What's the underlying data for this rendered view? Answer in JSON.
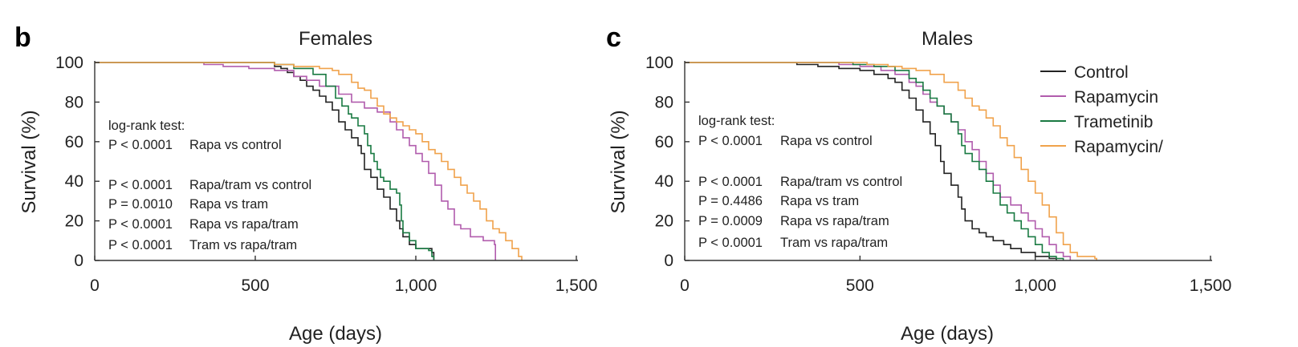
{
  "colors": {
    "control": "#222222",
    "rapamycin": "#b15cad",
    "trametinib": "#197a42",
    "combo": "#f0a24b"
  },
  "legend": {
    "placement": "top-right",
    "entries": [
      "Control",
      "Rapamycin",
      "Trametinib",
      "Rapamycin/"
    ]
  },
  "chart_data": [
    {
      "panel": "b",
      "type": "line",
      "title": "Females",
      "xlabel": "Age (days)",
      "ylabel": "Survival (%)",
      "xlim": [
        0,
        1500
      ],
      "ylim": [
        0,
        100
      ],
      "xticks": [
        "0",
        "500",
        "1,000",
        "1,500"
      ],
      "yticks": [
        "0",
        "20",
        "40",
        "60",
        "80",
        "100"
      ],
      "stats_header": "log-rank test:",
      "stats": [
        {
          "p": "P < 0.0001",
          "comparison": "Rapa vs control"
        },
        {
          "p": "P < 0.0001",
          "comparison": "Rapa/tram vs control"
        },
        {
          "p": "P = 0.0010",
          "comparison": "Rapa vs tram"
        },
        {
          "p": "P < 0.0001",
          "comparison": "Rapa vs rapa/tram"
        },
        {
          "p": "P < 0.0001",
          "comparison": "Tram vs rapa/tram"
        }
      ],
      "series": [
        {
          "name": "Control",
          "color_key": "control",
          "points": [
            [
              0,
              100
            ],
            [
              540,
              100
            ],
            [
              560,
              98
            ],
            [
              580,
              97
            ],
            [
              600,
              95
            ],
            [
              620,
              93
            ],
            [
              640,
              91
            ],
            [
              660,
              88
            ],
            [
              680,
              86
            ],
            [
              700,
              83
            ],
            [
              720,
              80
            ],
            [
              740,
              76
            ],
            [
              760,
              70
            ],
            [
              780,
              66
            ],
            [
              800,
              62
            ],
            [
              820,
              58
            ],
            [
              830,
              54
            ],
            [
              840,
              46
            ],
            [
              860,
              42
            ],
            [
              880,
              36
            ],
            [
              900,
              32
            ],
            [
              920,
              26
            ],
            [
              940,
              20
            ],
            [
              950,
              16
            ],
            [
              960,
              12
            ],
            [
              980,
              8
            ],
            [
              1000,
              6
            ],
            [
              1050,
              4
            ],
            [
              1056,
              0
            ]
          ]
        },
        {
          "name": "Rapamycin",
          "color_key": "rapamycin",
          "points": [
            [
              0,
              100
            ],
            [
              320,
              100
            ],
            [
              340,
              99
            ],
            [
              400,
              98
            ],
            [
              480,
              97
            ],
            [
              560,
              96
            ],
            [
              620,
              93
            ],
            [
              660,
              91
            ],
            [
              700,
              88
            ],
            [
              760,
              84
            ],
            [
              800,
              80
            ],
            [
              840,
              77
            ],
            [
              880,
              75
            ],
            [
              920,
              70
            ],
            [
              940,
              66
            ],
            [
              960,
              62
            ],
            [
              980,
              58
            ],
            [
              1000,
              54
            ],
            [
              1020,
              50
            ],
            [
              1040,
              44
            ],
            [
              1060,
              38
            ],
            [
              1080,
              30
            ],
            [
              1100,
              26
            ],
            [
              1120,
              18
            ],
            [
              1140,
              16
            ],
            [
              1170,
              12
            ],
            [
              1210,
              10
            ],
            [
              1245,
              8
            ],
            [
              1248,
              0
            ]
          ]
        },
        {
          "name": "Trametinib",
          "color_key": "trametinib",
          "points": [
            [
              0,
              100
            ],
            [
              500,
              100
            ],
            [
              560,
              99
            ],
            [
              620,
              97
            ],
            [
              680,
              94
            ],
            [
              720,
              88
            ],
            [
              750,
              82
            ],
            [
              770,
              78
            ],
            [
              790,
              74
            ],
            [
              800,
              72
            ],
            [
              820,
              68
            ],
            [
              840,
              64
            ],
            [
              850,
              58
            ],
            [
              860,
              54
            ],
            [
              870,
              50
            ],
            [
              880,
              46
            ],
            [
              890,
              42
            ],
            [
              900,
              40
            ],
            [
              920,
              36
            ],
            [
              940,
              34
            ],
            [
              950,
              28
            ],
            [
              955,
              20
            ],
            [
              960,
              14
            ],
            [
              980,
              10
            ],
            [
              1000,
              6
            ],
            [
              1040,
              5
            ],
            [
              1050,
              2
            ],
            [
              1056,
              0
            ]
          ]
        },
        {
          "name": "Rapamycin/",
          "color_key": "combo",
          "points": [
            [
              0,
              100
            ],
            [
              520,
              100
            ],
            [
              560,
              99
            ],
            [
              620,
              98
            ],
            [
              700,
              97
            ],
            [
              740,
              96
            ],
            [
              760,
              94
            ],
            [
              800,
              90
            ],
            [
              820,
              87
            ],
            [
              840,
              86
            ],
            [
              860,
              82
            ],
            [
              880,
              78
            ],
            [
              900,
              74
            ],
            [
              920,
              72
            ],
            [
              940,
              70
            ],
            [
              960,
              68
            ],
            [
              980,
              66
            ],
            [
              1000,
              64
            ],
            [
              1020,
              60
            ],
            [
              1040,
              56
            ],
            [
              1060,
              54
            ],
            [
              1080,
              50
            ],
            [
              1100,
              46
            ],
            [
              1120,
              42
            ],
            [
              1140,
              38
            ],
            [
              1160,
              34
            ],
            [
              1180,
              30
            ],
            [
              1200,
              26
            ],
            [
              1220,
              20
            ],
            [
              1240,
              16
            ],
            [
              1260,
              14
            ],
            [
              1280,
              10
            ],
            [
              1300,
              6
            ],
            [
              1320,
              2
            ],
            [
              1330,
              0
            ]
          ]
        }
      ]
    },
    {
      "panel": "c",
      "type": "line",
      "title": "Males",
      "xlabel": "Age (days)",
      "ylabel": "Survival (%)",
      "xlim": [
        0,
        1500
      ],
      "ylim": [
        0,
        100
      ],
      "xticks": [
        "0",
        "500",
        "1,000",
        "1,500"
      ],
      "yticks": [
        "0",
        "20",
        "40",
        "60",
        "80",
        "100"
      ],
      "stats_header": "log-rank test:",
      "stats": [
        {
          "p": "P < 0.0001",
          "comparison": "Rapa vs control"
        },
        {
          "p": "P < 0.0001",
          "comparison": "Rapa/tram vs control"
        },
        {
          "p": "P = 0.4486",
          "comparison": "Rapa vs tram"
        },
        {
          "p": "P = 0.0009",
          "comparison": "Rapa vs rapa/tram"
        },
        {
          "p": "P < 0.0001",
          "comparison": "Tram vs rapa/tram"
        }
      ],
      "series": [
        {
          "name": "Control",
          "color_key": "control",
          "points": [
            [
              0,
              100
            ],
            [
              280,
              100
            ],
            [
              320,
              99
            ],
            [
              380,
              98
            ],
            [
              440,
              97
            ],
            [
              500,
              96
            ],
            [
              540,
              94
            ],
            [
              580,
              92
            ],
            [
              600,
              90
            ],
            [
              620,
              86
            ],
            [
              640,
              82
            ],
            [
              660,
              76
            ],
            [
              680,
              70
            ],
            [
              700,
              64
            ],
            [
              715,
              58
            ],
            [
              730,
              50
            ],
            [
              740,
              44
            ],
            [
              760,
              38
            ],
            [
              780,
              32
            ],
            [
              790,
              26
            ],
            [
              800,
              20
            ],
            [
              820,
              16
            ],
            [
              840,
              14
            ],
            [
              860,
              12
            ],
            [
              880,
              10
            ],
            [
              910,
              8
            ],
            [
              930,
              6
            ],
            [
              960,
              4
            ],
            [
              1000,
              2
            ],
            [
              1040,
              1
            ],
            [
              1060,
              0
            ]
          ]
        },
        {
          "name": "Rapamycin",
          "color_key": "rapamycin",
          "points": [
            [
              0,
              100
            ],
            [
              380,
              100
            ],
            [
              440,
              99
            ],
            [
              500,
              98
            ],
            [
              560,
              96
            ],
            [
              600,
              94
            ],
            [
              640,
              90
            ],
            [
              660,
              88
            ],
            [
              680,
              84
            ],
            [
              700,
              80
            ],
            [
              720,
              78
            ],
            [
              740,
              74
            ],
            [
              760,
              70
            ],
            [
              780,
              66
            ],
            [
              800,
              60
            ],
            [
              820,
              56
            ],
            [
              840,
              50
            ],
            [
              860,
              44
            ],
            [
              880,
              38
            ],
            [
              900,
              32
            ],
            [
              930,
              28
            ],
            [
              960,
              24
            ],
            [
              980,
              20
            ],
            [
              1000,
              16
            ],
            [
              1020,
              12
            ],
            [
              1040,
              8
            ],
            [
              1060,
              4
            ],
            [
              1080,
              2
            ],
            [
              1100,
              0
            ]
          ]
        },
        {
          "name": "Trametinib",
          "color_key": "trametinib",
          "points": [
            [
              0,
              100
            ],
            [
              420,
              100
            ],
            [
              480,
              99
            ],
            [
              540,
              98
            ],
            [
              600,
              96
            ],
            [
              640,
              92
            ],
            [
              660,
              90
            ],
            [
              680,
              86
            ],
            [
              700,
              82
            ],
            [
              720,
              78
            ],
            [
              740,
              74
            ],
            [
              760,
              70
            ],
            [
              780,
              64
            ],
            [
              790,
              58
            ],
            [
              800,
              54
            ],
            [
              820,
              50
            ],
            [
              840,
              46
            ],
            [
              860,
              40
            ],
            [
              880,
              34
            ],
            [
              900,
              28
            ],
            [
              920,
              24
            ],
            [
              940,
              20
            ],
            [
              960,
              16
            ],
            [
              980,
              12
            ],
            [
              1000,
              8
            ],
            [
              1020,
              4
            ],
            [
              1040,
              2
            ],
            [
              1060,
              1
            ],
            [
              1080,
              0
            ]
          ]
        },
        {
          "name": "Rapamycin/",
          "color_key": "combo",
          "points": [
            [
              0,
              100
            ],
            [
              460,
              100
            ],
            [
              520,
              99
            ],
            [
              580,
              98
            ],
            [
              620,
              97
            ],
            [
              660,
              96
            ],
            [
              700,
              94
            ],
            [
              740,
              90
            ],
            [
              780,
              86
            ],
            [
              800,
              82
            ],
            [
              820,
              78
            ],
            [
              840,
              76
            ],
            [
              860,
              72
            ],
            [
              880,
              68
            ],
            [
              900,
              62
            ],
            [
              920,
              58
            ],
            [
              940,
              52
            ],
            [
              960,
              46
            ],
            [
              980,
              40
            ],
            [
              1000,
              34
            ],
            [
              1020,
              28
            ],
            [
              1040,
              22
            ],
            [
              1060,
              14
            ],
            [
              1080,
              8
            ],
            [
              1100,
              4
            ],
            [
              1120,
              2
            ],
            [
              1170,
              1
            ],
            [
              1175,
              0
            ]
          ]
        }
      ]
    }
  ]
}
